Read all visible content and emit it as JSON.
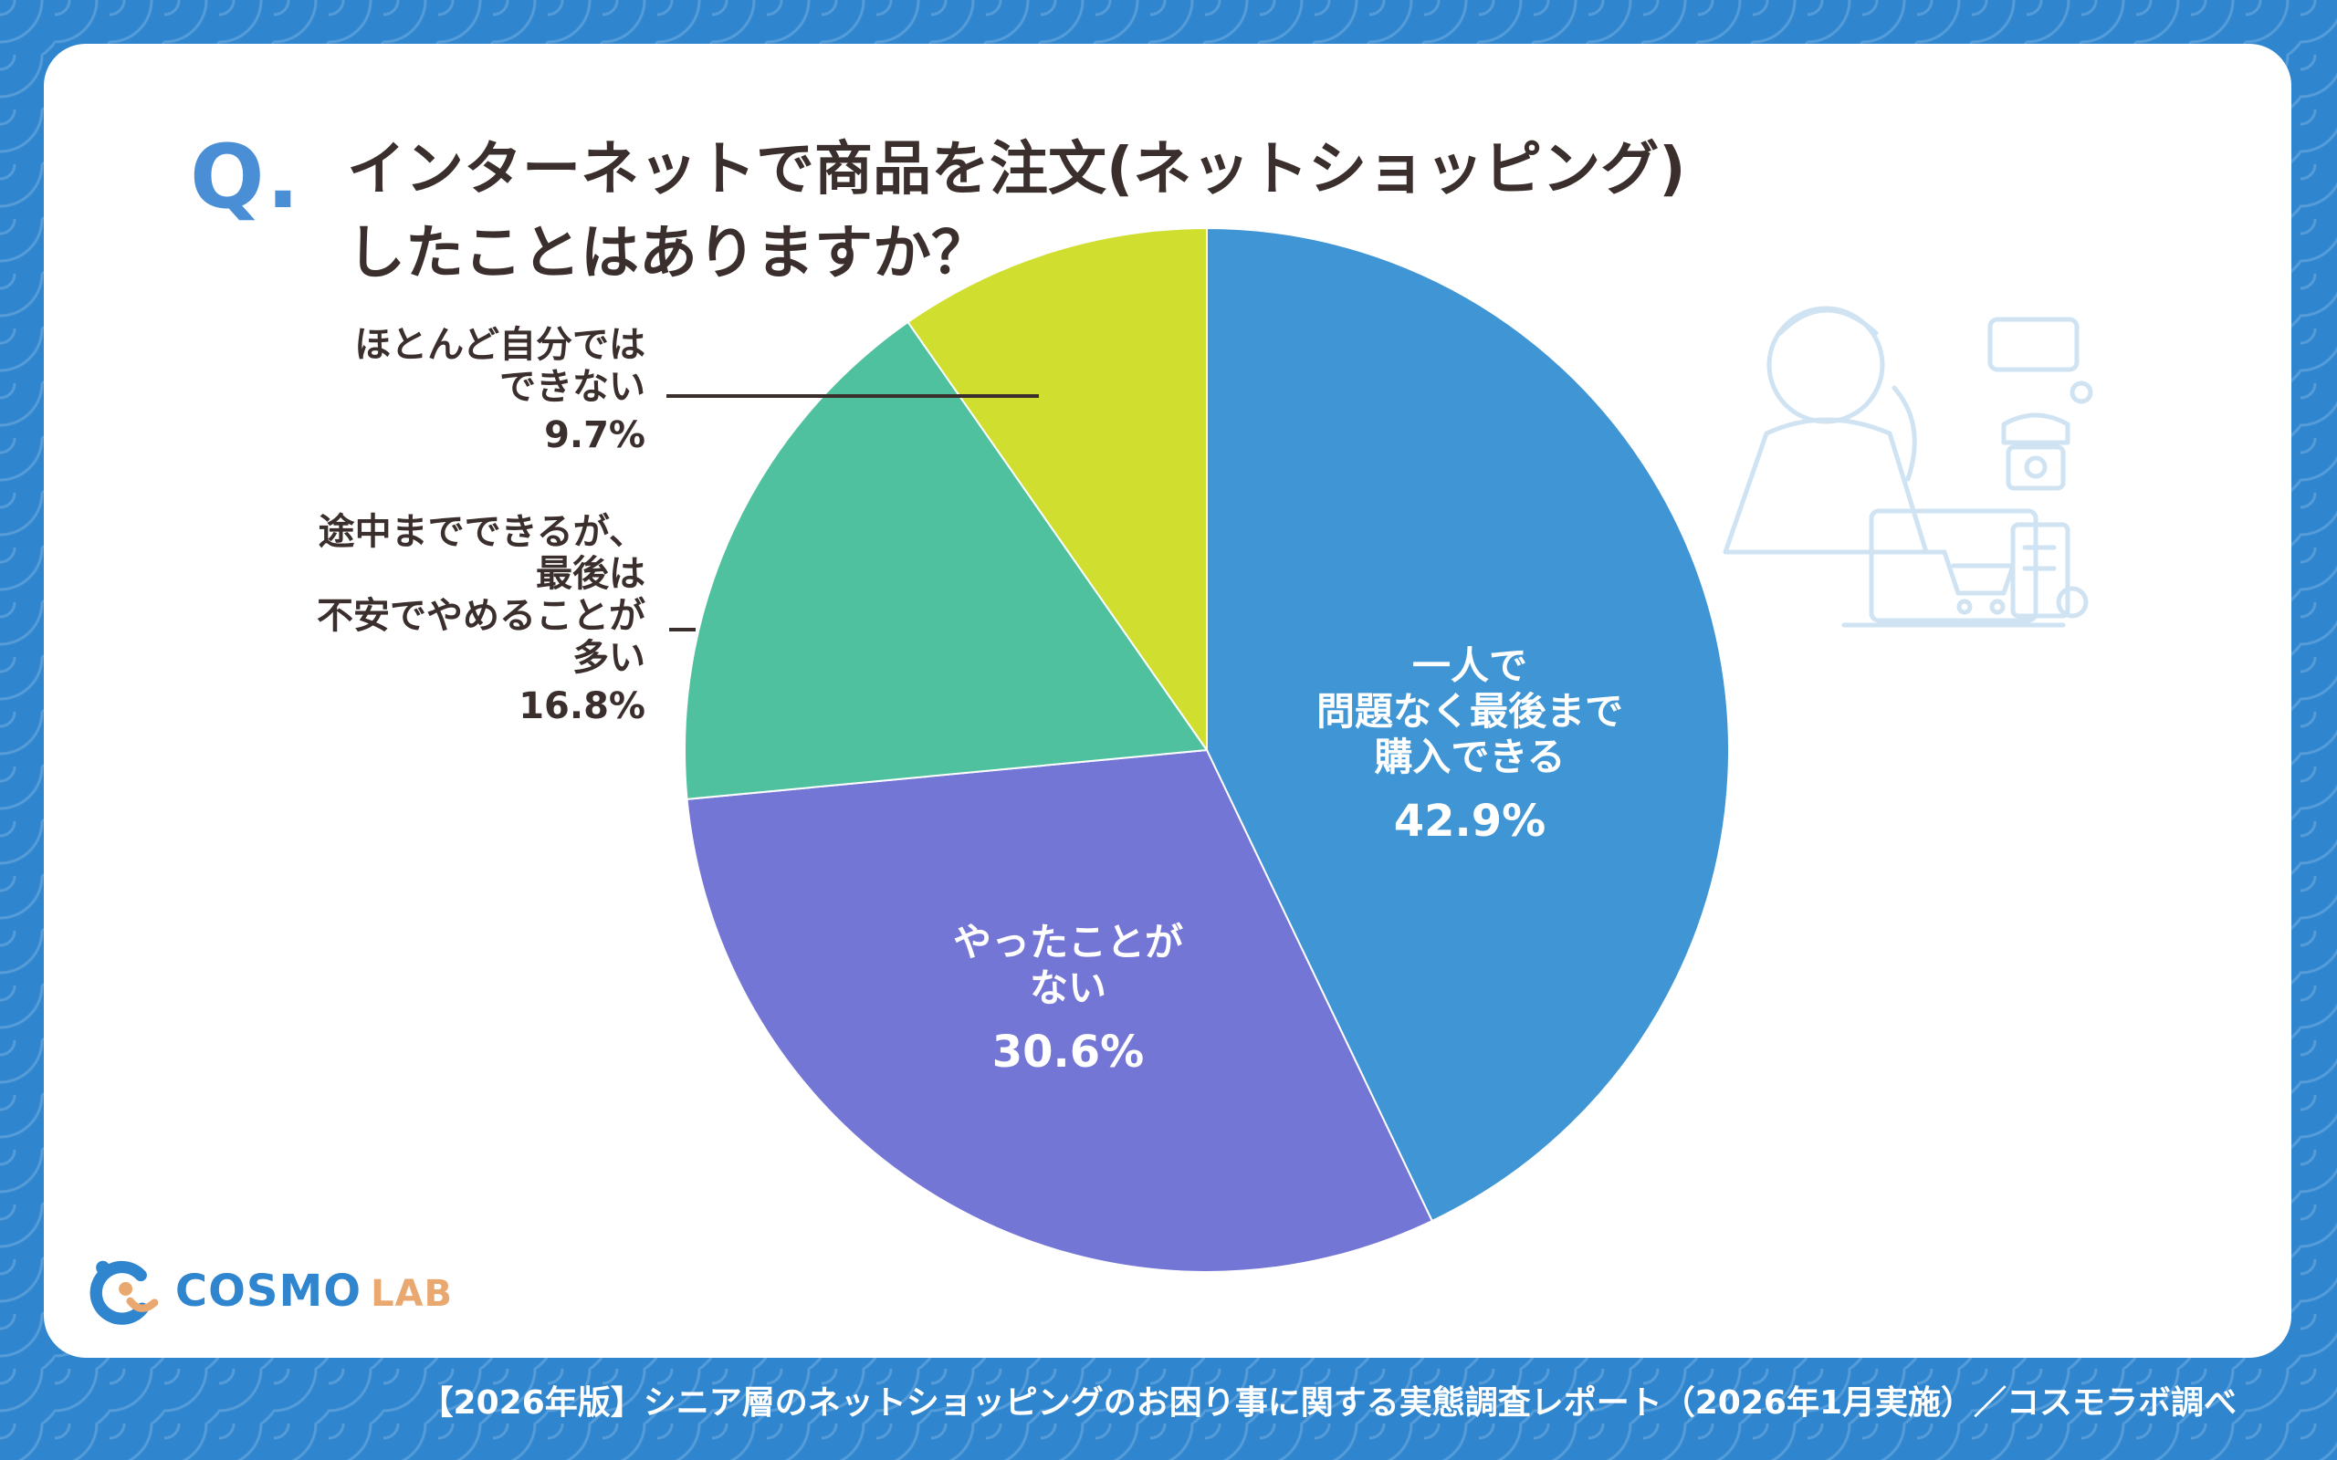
{
  "header": {
    "q_mark": "Q.",
    "title": "インターネットで商品を注文(ネットショッピング)\nしたことはありますか？"
  },
  "colors": {
    "background": "#2f86cf",
    "card": "#ffffff",
    "accent": "#4a8fd6"
  },
  "chart_data": {
    "type": "pie",
    "categories": [
      "一人で\n問題なく最後まで\n購入できる",
      "やったことが\nない",
      "途中までできるが、\n最後は\n不安でやめることが\n多い",
      "ほとんど自分では\nできない"
    ],
    "values": [
      42.9,
      30.6,
      16.8,
      9.7
    ],
    "value_labels": [
      "42.9%",
      "30.6%",
      "16.8%",
      "9.7%"
    ],
    "colors": [
      "#4095d4",
      "#7476d6",
      "#50c19e",
      "#cfde2f"
    ],
    "start_angle": "12 o'clock",
    "direction": "clockwise",
    "title": "",
    "legend": "none"
  },
  "logo": {
    "brand": "COSMO",
    "sub": "LAB"
  },
  "footer": {
    "text": "【2026年版】シニア層のネットショッピングのお困り事に関する実態調査レポート（2026年1月実施）／コスモラボ調べ"
  },
  "illustration": {
    "icon": "senior-with-laptop-icon"
  }
}
